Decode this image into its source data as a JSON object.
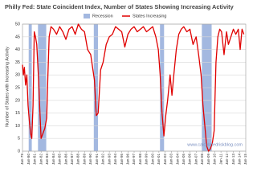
{
  "chart_data": {
    "type": "line",
    "title": "Philly Fed: State Coincident Index, Number of States Showing Increasing Activity",
    "y_label": "Number of States with Increasing Activity",
    "watermark": "www.calculatedriskblog.com",
    "recessions": {
      "name": "Recession",
      "color": "#a3b8e0",
      "spans": [
        [
          1980.0,
          1980.5
        ],
        [
          1981.5,
          1982.83
        ],
        [
          1990.5,
          1991.17
        ],
        [
          2001.17,
          2001.83
        ],
        [
          2007.92,
          2009.5
        ]
      ]
    },
    "series": [
      {
        "name": "States Increasing",
        "color": "#e00000",
        "x": [
          1979.0,
          1979.15,
          1979.3,
          1979.5,
          1979.7,
          1979.9,
          1980.1,
          1980.3,
          1980.5,
          1980.7,
          1980.9,
          1981.1,
          1981.3,
          1981.6,
          1981.8,
          1982.0,
          1982.3,
          1982.6,
          1982.9,
          1983.1,
          1983.3,
          1983.6,
          1984.0,
          1984.5,
          1985.0,
          1985.5,
          1986.0,
          1986.5,
          1987.0,
          1987.5,
          1988.0,
          1988.5,
          1989.0,
          1989.5,
          1990.0,
          1990.3,
          1990.6,
          1990.9,
          1991.2,
          1991.6,
          1992.0,
          1992.5,
          1993.0,
          1993.5,
          1994.0,
          1994.5,
          1995.0,
          1995.5,
          1996.0,
          1996.5,
          1997.0,
          1997.5,
          1998.0,
          1998.5,
          1999.0,
          1999.5,
          2000.0,
          2000.5,
          2000.9,
          2001.2,
          2001.5,
          2001.8,
          2002.1,
          2002.4,
          2002.8,
          2003.1,
          2003.4,
          2003.8,
          2004.2,
          2004.6,
          2005.0,
          2005.5,
          2006.0,
          2006.5,
          2007.0,
          2007.4,
          2007.8,
          2008.1,
          2008.4,
          2008.7,
          2009.0,
          2009.3,
          2009.6,
          2009.9,
          2010.2,
          2010.5,
          2010.8,
          2011.1,
          2011.5,
          2011.9,
          2012.2,
          2012.6,
          2013.0,
          2013.4,
          2013.8,
          2014.1,
          2014.4,
          2014.7
        ],
        "values": [
          34,
          30,
          33,
          26,
          30,
          18,
          12,
          7,
          5,
          18,
          47,
          45,
          42,
          28,
          16,
          5,
          7,
          9,
          13,
          30,
          45,
          49,
          48,
          46,
          49,
          47,
          44,
          48,
          49,
          46,
          50,
          48,
          47,
          40,
          38,
          33,
          28,
          14,
          15,
          32,
          35,
          42,
          45,
          46,
          49,
          48,
          47,
          41,
          46,
          48,
          49,
          47,
          48,
          49,
          47,
          48,
          49,
          45,
          40,
          30,
          15,
          6,
          14,
          20,
          30,
          22,
          30,
          40,
          46,
          48,
          49,
          47,
          48,
          42,
          45,
          38,
          30,
          18,
          10,
          2,
          0,
          1,
          3,
          8,
          35,
          45,
          48,
          47,
          38,
          47,
          42,
          45,
          48,
          46,
          48,
          40,
          48,
          46
        ]
      }
    ],
    "xlim": [
      1979,
      2015
    ],
    "xticks": [
      {
        "value": 1979,
        "label": "Jan-79"
      },
      {
        "value": 1980,
        "label": "Jan-80"
      },
      {
        "value": 1981,
        "label": "Jan-81"
      },
      {
        "value": 1982,
        "label": "Jan-82"
      },
      {
        "value": 1983,
        "label": "Jan-83"
      },
      {
        "value": 1984,
        "label": "Jan-84"
      },
      {
        "value": 1985,
        "label": "Jan-85"
      },
      {
        "value": 1986,
        "label": "Jan-86"
      },
      {
        "value": 1987,
        "label": "Jan-87"
      },
      {
        "value": 1988,
        "label": "Jan-88"
      },
      {
        "value": 1989,
        "label": "Jan-89"
      },
      {
        "value": 1990,
        "label": "Jan-90"
      },
      {
        "value": 1991,
        "label": "Jan-91"
      },
      {
        "value": 1992,
        "label": "Jan-92"
      },
      {
        "value": 1993,
        "label": "Jan-93"
      },
      {
        "value": 1994,
        "label": "Jan-94"
      },
      {
        "value": 1995,
        "label": "Jan-95"
      },
      {
        "value": 1996,
        "label": "Jan-96"
      },
      {
        "value": 1997,
        "label": "Jan-97"
      },
      {
        "value": 1998,
        "label": "Jan-98"
      },
      {
        "value": 1999,
        "label": "Jan-99"
      },
      {
        "value": 2000,
        "label": "Jan-00"
      },
      {
        "value": 2001,
        "label": "Jan-01"
      },
      {
        "value": 2002,
        "label": "Jan-02"
      },
      {
        "value": 2003,
        "label": "Jan-03"
      },
      {
        "value": 2004,
        "label": "Jan-04"
      },
      {
        "value": 2005,
        "label": "Jan-05"
      },
      {
        "value": 2006,
        "label": "Jan-06"
      },
      {
        "value": 2007,
        "label": "Jan-07"
      },
      {
        "value": 2008,
        "label": "Jan-08"
      },
      {
        "value": 2009,
        "label": "Jan-09"
      },
      {
        "value": 2010,
        "label": "Jan-10"
      },
      {
        "value": 2011,
        "label": "Jan-11"
      },
      {
        "value": 2012,
        "label": "Jan-12"
      },
      {
        "value": 2013,
        "label": "Jan-13"
      },
      {
        "value": 2014,
        "label": "Jan-14"
      },
      {
        "value": 2015,
        "label": "Jan-15"
      }
    ],
    "ylim": [
      0,
      50
    ],
    "yticks": [
      0,
      5,
      10,
      15,
      20,
      25,
      30,
      35,
      40,
      45,
      50
    ],
    "grid": true
  }
}
